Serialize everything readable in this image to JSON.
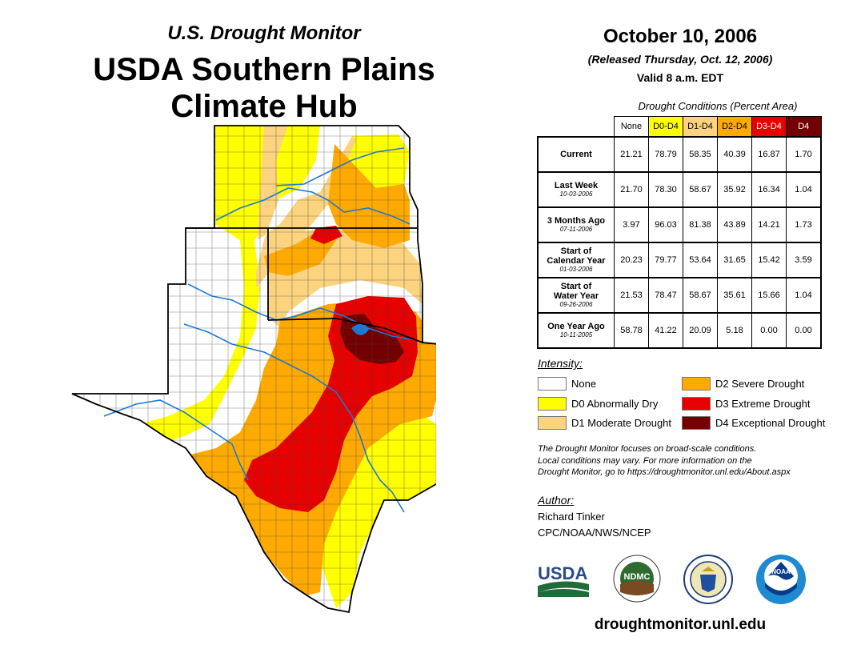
{
  "title": {
    "line1": "U.S. Drought Monitor",
    "line2": "USDA Southern Plains",
    "line3": "Climate Hub"
  },
  "header": {
    "date": "October 10, 2006",
    "released": "(Released Thursday, Oct. 12, 2006)",
    "valid": "Valid 8 a.m. EDT"
  },
  "table": {
    "caption": "Drought Conditions (Percent Area)",
    "columns": [
      "None",
      "D0-D4",
      "D1-D4",
      "D2-D4",
      "D3-D4",
      "D4"
    ],
    "column_colors": [
      "#ffffff",
      "#ffff00",
      "#fcd37f",
      "#ffaa00",
      "#e60000",
      "#730000"
    ],
    "rows": [
      {
        "label": "Current",
        "label2": "",
        "date": "",
        "values": [
          "21.21",
          "78.79",
          "58.35",
          "40.39",
          "16.87",
          "1.70"
        ]
      },
      {
        "label": "Last Week",
        "label2": "",
        "date": "10-03-2006",
        "values": [
          "21.70",
          "78.30",
          "58.67",
          "35.92",
          "16.34",
          "1.04"
        ]
      },
      {
        "label": "3 Months Ago",
        "label2": "",
        "date": "07-11-2006",
        "values": [
          "3.97",
          "96.03",
          "81.38",
          "43.89",
          "14.21",
          "1.73"
        ]
      },
      {
        "label": "Start of",
        "label2": "Calendar Year",
        "date": "01-03-2006",
        "values": [
          "20.23",
          "79.77",
          "53.64",
          "31.65",
          "15.42",
          "3.59"
        ]
      },
      {
        "label": "Start of",
        "label2": "Water Year",
        "date": "09-26-2006",
        "values": [
          "21.53",
          "78.47",
          "58.67",
          "35.61",
          "15.66",
          "1.04"
        ]
      },
      {
        "label": "One Year Ago",
        "label2": "",
        "date": "10-11-2005",
        "values": [
          "58.78",
          "41.22",
          "20.09",
          "5.18",
          "0.00",
          "0.00"
        ]
      }
    ]
  },
  "legend": {
    "title": "Intensity:",
    "items": [
      {
        "label": "None",
        "color": "#ffffff"
      },
      {
        "label": "D0 Abnormally Dry",
        "color": "#ffff00"
      },
      {
        "label": "D1 Moderate Drought",
        "color": "#fcd37f"
      },
      {
        "label": "D2 Severe Drought",
        "color": "#ffaa00"
      },
      {
        "label": "D3 Extreme Drought",
        "color": "#e60000"
      },
      {
        "label": "D4 Exceptional Drought",
        "color": "#730000"
      }
    ]
  },
  "note": {
    "line1": "The Drought Monitor focuses on broad-scale conditions.",
    "line2": "Local conditions may vary. For more information on the",
    "line3": "Drought Monitor, go to https://droughtmonitor.unl.edu/About.aspx"
  },
  "author": {
    "label": "Author:",
    "name": "Richard Tinker",
    "org": "CPC/NOAA/NWS/NCEP"
  },
  "logos": {
    "usda": "USDA",
    "ndmc": "NDMC",
    "noaa": "NOAA"
  },
  "footer_url": "droughtmonitor.unl.edu"
}
